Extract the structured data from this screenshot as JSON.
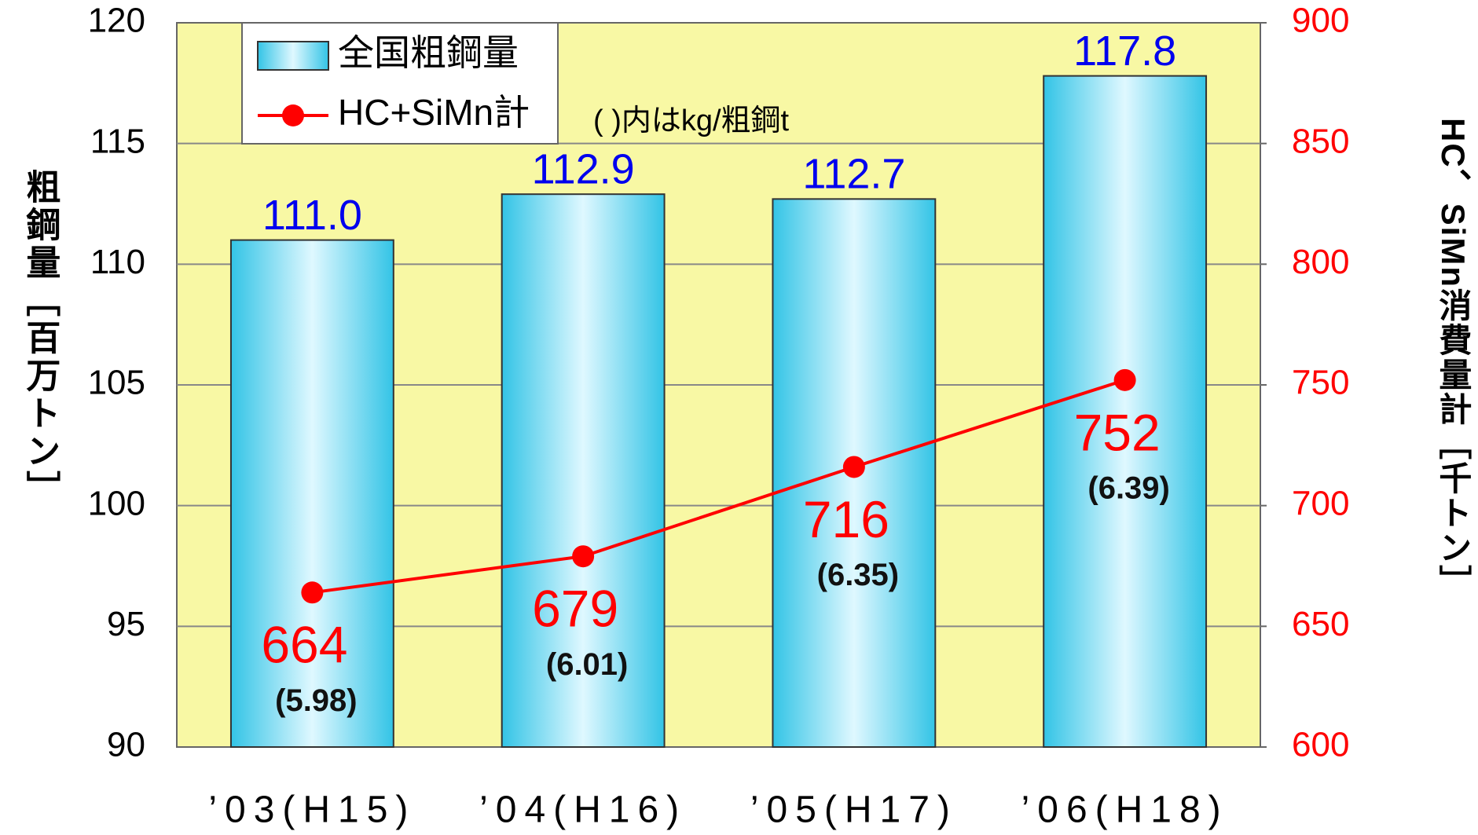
{
  "chart_data": {
    "type": "bar-line",
    "categories": [
      "’03(H15)",
      "’04(H16)",
      "’05(H17)",
      "’06(H18)"
    ],
    "series": [
      {
        "name": "全国粗鋼量",
        "type": "bar",
        "color": "#33ccee",
        "values": [
          111.0,
          112.9,
          112.7,
          117.8
        ],
        "value_labels": [
          "111.0",
          "112.9",
          "112.7",
          "117.8"
        ],
        "label_color": "#0000ee"
      },
      {
        "name": "HC+SiMn計",
        "type": "line",
        "axis": "y2",
        "color": "#ff0000",
        "values": [
          664,
          679,
          716,
          752
        ],
        "notes": [
          "(5.98)",
          "(6.01)",
          "(6.35)",
          "(6.39)"
        ]
      }
    ],
    "note": "( )内はkg/粗鋼t",
    "ylabel": "粗鋼量［百万トン］",
    "y2label": "HC、SiMn消費量計［千トン］",
    "ylim": [
      90,
      120
    ],
    "yticks": [
      90,
      95,
      100,
      105,
      110,
      115,
      120
    ],
    "y2lim": [
      600,
      900
    ],
    "y2ticks": [
      600,
      650,
      700,
      750,
      800,
      850,
      900
    ],
    "grid": true,
    "legend": "upper left"
  }
}
